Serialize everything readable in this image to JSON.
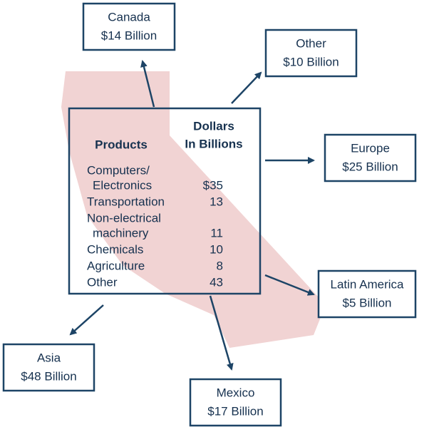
{
  "destinations": [
    {
      "name": "Canada",
      "amount": "$14 Billion"
    },
    {
      "name": "Other",
      "amount": "$10 Billion"
    },
    {
      "name": "Europe",
      "amount": "$25 Billion"
    },
    {
      "name": "Latin America",
      "amount": "$5 Billion"
    },
    {
      "name": "Asia",
      "amount": "$48 Billion"
    },
    {
      "name": "Mexico",
      "amount": "$17 Billion"
    }
  ],
  "table": {
    "headers": {
      "products": "Products",
      "dollars": [
        "Dollars",
        "In Billions"
      ]
    },
    "rows": [
      {
        "product": [
          "Computers/",
          "Electronics"
        ],
        "value": "$35"
      },
      {
        "product": [
          "Transportation"
        ],
        "value": "13"
      },
      {
        "product": [
          "Non-electrical",
          "machinery"
        ],
        "value": "11"
      },
      {
        "product": [
          "Chemicals"
        ],
        "value": "10"
      },
      {
        "product": [
          "Agriculture"
        ],
        "value": "8"
      },
      {
        "product": [
          "Other"
        ],
        "value": "43"
      }
    ]
  }
}
